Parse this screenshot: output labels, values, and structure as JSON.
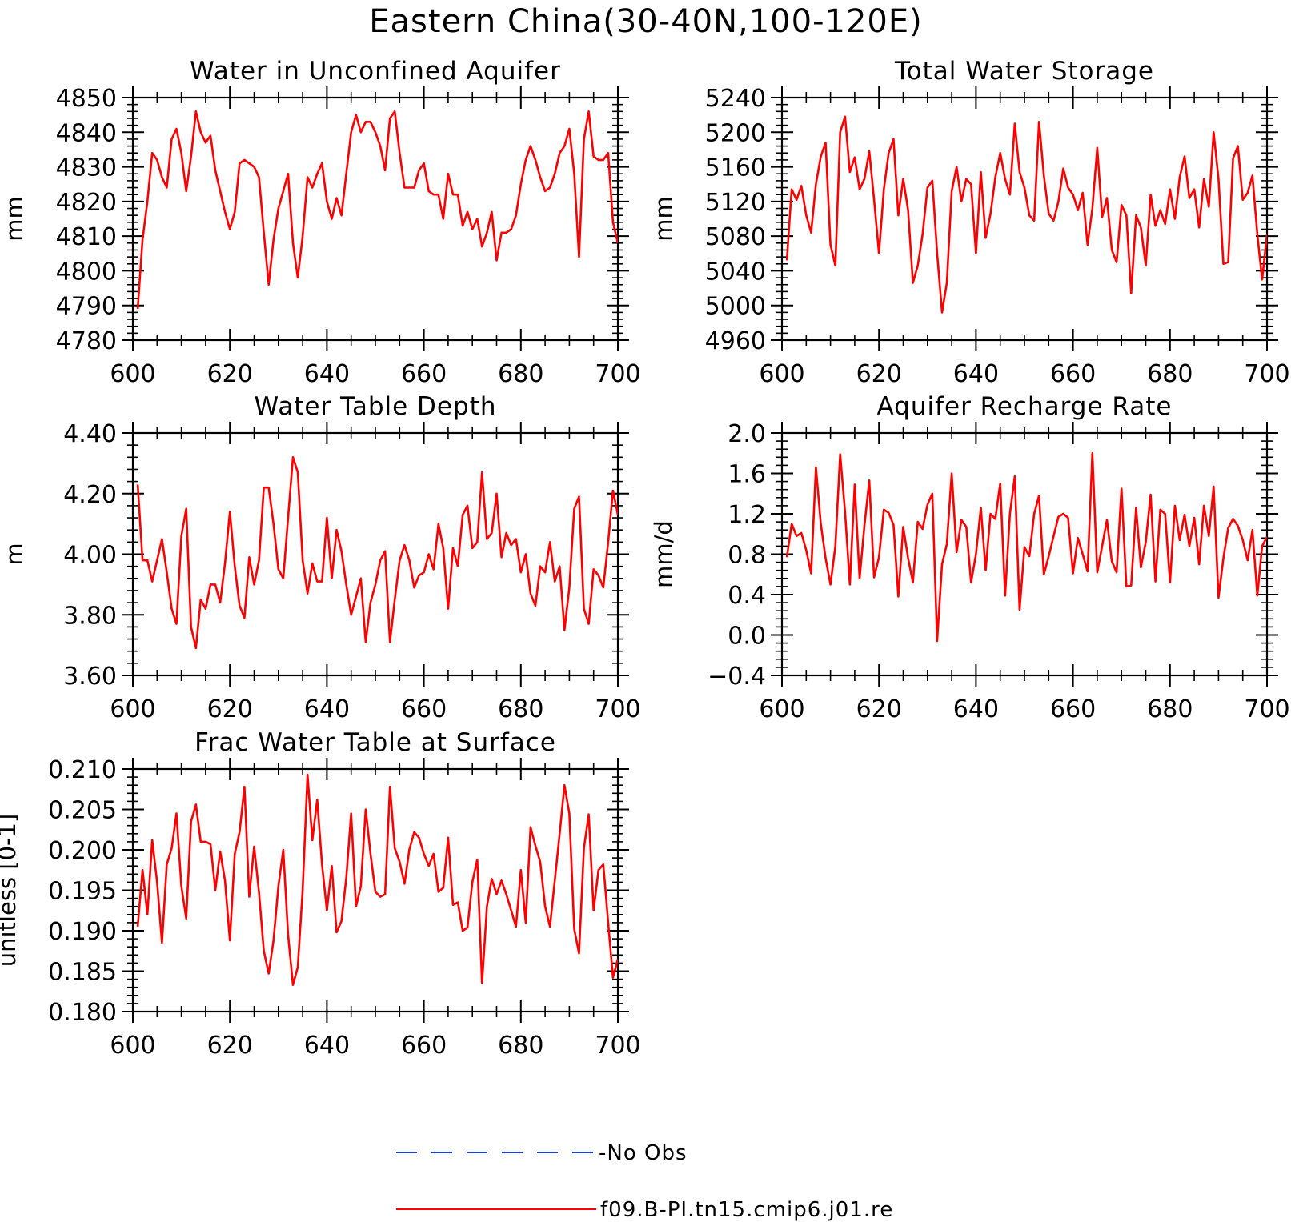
{
  "figure": {
    "title": "Eastern China(30-40N,100-120E)"
  },
  "legend": {
    "entries": [
      {
        "label": "-No Obs",
        "color": "#1f3fd6",
        "style": "dashed"
      },
      {
        "label": "f09.B-PI.tn15.cmip6.j01.re",
        "color": "#ff0000",
        "style": "solid"
      }
    ]
  },
  "chart_data": [
    {
      "type": "line",
      "title": "Water in Unconfined Aquifer",
      "xlabel": "",
      "ylabel": "mm",
      "xlim": [
        600,
        700
      ],
      "ylim": [
        4780,
        4850
      ],
      "xticks": [
        600,
        620,
        640,
        660,
        680,
        700
      ],
      "yticks": [
        4780,
        4790,
        4800,
        4810,
        4820,
        4830,
        4840,
        4850
      ],
      "ytick_labels": [
        "4780",
        "4790",
        "4800",
        "4810",
        "4820",
        "4830",
        "4840",
        "4850"
      ],
      "series": [
        {
          "color": "#ff0000",
          "x_start": 601,
          "x_step": 1,
          "values": [
            4789,
            4809,
            4820,
            4834,
            4832,
            4827,
            4824,
            4838,
            4841,
            4834,
            4823,
            4833,
            4846,
            4840,
            4837,
            4839,
            4829,
            4823,
            4817,
            4812,
            4817,
            4831,
            4832,
            4831,
            4830,
            4827,
            4811,
            4796,
            4809,
            4818,
            4823,
            4828,
            4808,
            4798,
            4810,
            4827,
            4824,
            4828,
            4831,
            4820,
            4815,
            4821,
            4816,
            4828,
            4840,
            4845,
            4840,
            4843,
            4843,
            4840,
            4836,
            4829,
            4844,
            4846,
            4834,
            4824,
            4824,
            4824,
            4829,
            4831,
            4823,
            4822,
            4822,
            4815,
            4828,
            4822,
            4822,
            4813,
            4817,
            4812,
            4815,
            4807,
            4811,
            4817,
            4803,
            4811,
            4811,
            4812,
            4816,
            4825,
            4832,
            4836,
            4832,
            4827,
            4823,
            4824,
            4828,
            4834,
            4836,
            4841,
            4828,
            4804,
            4838,
            4846,
            4833,
            4832,
            4832,
            4834,
            4814,
            4808
          ]
        }
      ]
    },
    {
      "type": "line",
      "title": "Total Water Storage",
      "xlabel": "",
      "ylabel": "mm",
      "xlim": [
        600,
        700
      ],
      "ylim": [
        4960,
        5240
      ],
      "xticks": [
        600,
        620,
        640,
        660,
        680,
        700
      ],
      "yticks": [
        4960,
        5000,
        5040,
        5080,
        5120,
        5160,
        5200,
        5240
      ],
      "ytick_labels": [
        "4960",
        "5000",
        "5040",
        "5080",
        "5120",
        "5160",
        "5200",
        "5240"
      ],
      "series": [
        {
          "color": "#ff0000",
          "x_start": 601,
          "x_step": 1,
          "values": [
            5052,
            5134,
            5122,
            5138,
            5104,
            5084,
            5140,
            5172,
            5188,
            5070,
            5046,
            5200,
            5218,
            5154,
            5171,
            5134,
            5146,
            5178,
            5122,
            5060,
            5134,
            5176,
            5192,
            5104,
            5146,
            5110,
            5026,
            5046,
            5082,
            5136,
            5144,
            5060,
            4992,
            5026,
            5132,
            5160,
            5120,
            5146,
            5140,
            5060,
            5154,
            5078,
            5106,
            5148,
            5176,
            5146,
            5128,
            5210,
            5154,
            5136,
            5104,
            5098,
            5212,
            5150,
            5106,
            5098,
            5120,
            5158,
            5136,
            5128,
            5110,
            5130,
            5070,
            5112,
            5182,
            5102,
            5124,
            5064,
            5050,
            5116,
            5104,
            5014,
            5104,
            5090,
            5046,
            5128,
            5092,
            5110,
            5094,
            5134,
            5100,
            5148,
            5172,
            5124,
            5134,
            5090,
            5146,
            5114,
            5200,
            5146,
            5048,
            5050,
            5170,
            5184,
            5122,
            5130,
            5150,
            5082,
            5030,
            5082
          ]
        }
      ]
    },
    {
      "type": "line",
      "title": "Water Table Depth",
      "xlabel": "",
      "ylabel": "m",
      "xlim": [
        600,
        700
      ],
      "ylim": [
        3.6,
        4.4
      ],
      "xticks": [
        600,
        620,
        640,
        660,
        680,
        700
      ],
      "yticks": [
        3.6,
        3.8,
        4.0,
        4.2,
        4.4
      ],
      "ytick_labels": [
        "3.60",
        "3.80",
        "4.00",
        "4.20",
        "4.40"
      ],
      "series": [
        {
          "color": "#ff0000",
          "x_start": 601,
          "x_step": 1,
          "values": [
            4.23,
            3.98,
            3.98,
            3.91,
            3.98,
            4.05,
            3.94,
            3.82,
            3.77,
            4.06,
            4.15,
            3.76,
            3.69,
            3.85,
            3.82,
            3.9,
            3.9,
            3.84,
            3.97,
            4.14,
            3.96,
            3.83,
            3.79,
            3.99,
            3.9,
            3.98,
            4.22,
            4.22,
            4.1,
            3.95,
            3.92,
            4.12,
            4.32,
            4.27,
            3.98,
            3.87,
            3.97,
            3.91,
            3.91,
            4.12,
            3.92,
            4.08,
            4.01,
            3.9,
            3.8,
            3.86,
            3.92,
            3.71,
            3.84,
            3.9,
            3.98,
            4.01,
            3.71,
            3.85,
            3.98,
            4.03,
            3.98,
            3.89,
            3.93,
            3.94,
            4.0,
            3.95,
            4.1,
            4.02,
            3.82,
            4.02,
            3.96,
            4.13,
            4.16,
            4.02,
            4.04,
            4.27,
            4.05,
            4.07,
            4.2,
            3.99,
            4.07,
            4.03,
            4.05,
            3.94,
            4.0,
            3.87,
            3.83,
            3.96,
            3.94,
            4.04,
            3.91,
            3.96,
            3.75,
            3.89,
            4.15,
            4.19,
            3.82,
            3.77,
            3.95,
            3.93,
            3.89,
            4.04,
            4.21,
            4.13
          ]
        }
      ]
    },
    {
      "type": "line",
      "title": "Aquifer Recharge Rate",
      "xlabel": "",
      "ylabel": "mm/d",
      "xlim": [
        600,
        700
      ],
      "ylim": [
        -0.4,
        2.0
      ],
      "xticks": [
        600,
        620,
        640,
        660,
        680,
        700
      ],
      "yticks": [
        -0.4,
        0.0,
        0.4,
        0.8,
        1.2,
        1.6,
        2.0
      ],
      "ytick_labels": [
        "-0.4",
        "0.0",
        "0.4",
        "0.8",
        "1.2",
        "1.6",
        "2.0"
      ],
      "series": [
        {
          "color": "#ff0000",
          "x_start": 601,
          "x_step": 1,
          "values": [
            0.77,
            1.1,
            0.98,
            1.01,
            0.84,
            0.61,
            1.66,
            1.1,
            0.76,
            0.5,
            0.88,
            1.79,
            1.22,
            0.5,
            1.49,
            0.56,
            1.08,
            1.53,
            0.57,
            0.77,
            1.24,
            1.21,
            1.09,
            0.38,
            1.07,
            0.76,
            0.52,
            1.12,
            1.05,
            1.29,
            1.4,
            -0.06,
            0.7,
            0.9,
            1.6,
            0.82,
            1.14,
            1.07,
            0.52,
            0.8,
            1.26,
            0.64,
            1.2,
            1.15,
            1.5,
            0.39,
            1.2,
            1.57,
            0.25,
            0.87,
            0.78,
            1.2,
            1.38,
            0.6,
            0.78,
            0.98,
            1.17,
            1.2,
            1.16,
            0.61,
            0.96,
            0.8,
            0.63,
            1.8,
            0.62,
            0.88,
            1.14,
            0.73,
            0.62,
            1.45,
            0.48,
            0.49,
            1.26,
            0.67,
            0.92,
            1.39,
            0.53,
            1.24,
            1.2,
            0.52,
            1.28,
            0.94,
            1.19,
            0.88,
            1.16,
            0.7,
            1.28,
            0.98,
            1.47,
            0.37,
            0.76,
            1.06,
            1.15,
            1.08,
            0.94,
            0.74,
            1.04,
            0.39,
            0.88,
            0.97
          ]
        }
      ]
    },
    {
      "type": "line",
      "title": "Frac Water Table at Surface",
      "xlabel": "",
      "ylabel": "unitless [0-1]",
      "xlim": [
        600,
        700
      ],
      "ylim": [
        0.18,
        0.21
      ],
      "xticks": [
        600,
        620,
        640,
        660,
        680,
        700
      ],
      "yticks": [
        0.18,
        0.185,
        0.19,
        0.195,
        0.2,
        0.205,
        0.21
      ],
      "ytick_labels": [
        "0.180",
        "0.185",
        "0.190",
        "0.195",
        "0.200",
        "0.205",
        "0.210"
      ],
      "series": [
        {
          "color": "#ff0000",
          "x_start": 601,
          "x_step": 1,
          "values": [
            0.1905,
            0.1975,
            0.192,
            0.2012,
            0.196,
            0.1885,
            0.1982,
            0.2002,
            0.2045,
            0.1955,
            0.1915,
            0.2035,
            0.2056,
            0.201,
            0.201,
            0.2007,
            0.195,
            0.1998,
            0.1962,
            0.1888,
            0.1995,
            0.2022,
            0.2078,
            0.1942,
            0.2004,
            0.1947,
            0.1875,
            0.1847,
            0.1888,
            0.1955,
            0.2,
            0.1895,
            0.1833,
            0.1855,
            0.195,
            0.2093,
            0.2012,
            0.2062,
            0.1982,
            0.1925,
            0.198,
            0.1898,
            0.1912,
            0.1965,
            0.2045,
            0.193,
            0.1955,
            0.205,
            0.1995,
            0.1948,
            0.1942,
            0.1945,
            0.2078,
            0.2002,
            0.1985,
            0.1958,
            0.2,
            0.2022,
            0.2015,
            0.1995,
            0.198,
            0.1995,
            0.1948,
            0.1953,
            0.2015,
            0.1932,
            0.1935,
            0.19,
            0.1904,
            0.196,
            0.1988,
            0.1835,
            0.193,
            0.1964,
            0.1945,
            0.1962,
            0.1945,
            0.1925,
            0.1905,
            0.1975,
            0.191,
            0.2028,
            0.2005,
            0.1985,
            0.193,
            0.1905,
            0.1962,
            0.202,
            0.208,
            0.2045,
            0.1902,
            0.1872,
            0.2002,
            0.2044,
            0.1925,
            0.1975,
            0.1982,
            0.191,
            0.1842,
            0.1865
          ]
        }
      ]
    }
  ]
}
